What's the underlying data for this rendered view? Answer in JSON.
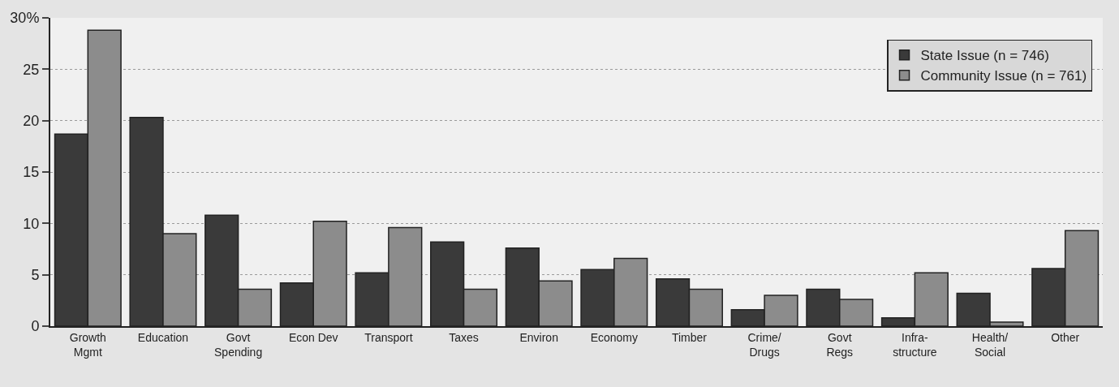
{
  "chart_data": {
    "type": "bar",
    "categories": [
      "Growth\nMgmt",
      "Education",
      "Govt\nSpending",
      "Econ Dev",
      "Transport",
      "Taxes",
      "Environ",
      "Economy",
      "Timber",
      "Crime/\nDrugs",
      "Govt\nRegs",
      "Infra-\nstructure",
      "Health/\nSocial",
      "Other"
    ],
    "series": [
      {
        "name": "State Issue (n = 746)",
        "color": "#3a3a3a",
        "values": [
          18.7,
          20.3,
          10.8,
          4.2,
          5.2,
          8.2,
          7.6,
          5.5,
          4.6,
          1.6,
          3.6,
          0.8,
          3.2,
          5.6
        ]
      },
      {
        "name": "Community Issue (n = 761)",
        "color": "#8c8c8c",
        "values": [
          28.8,
          9.0,
          3.6,
          10.2,
          9.6,
          3.6,
          4.4,
          6.6,
          3.6,
          3.0,
          2.6,
          5.2,
          0.4,
          9.3
        ]
      }
    ],
    "ylim": [
      0,
      30
    ],
    "yticks": [
      0,
      5,
      10,
      15,
      20,
      25,
      {
        "value": 30,
        "label": "30%"
      }
    ],
    "grid": "y",
    "legend": "top right"
  }
}
